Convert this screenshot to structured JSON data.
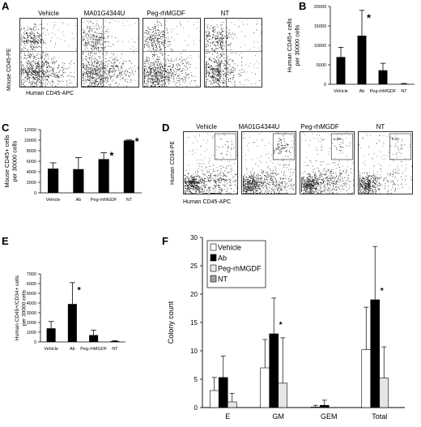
{
  "panels": {
    "A": {
      "label": "A",
      "conditions": [
        "Vehicle",
        "MA01G4344U",
        "Peg-rhMGDF",
        "NT"
      ],
      "ylabel": "Mouse CD45-PE",
      "xlabel": "Human CD45-APC"
    },
    "D": {
      "label": "D",
      "conditions": [
        "Vehicle",
        "MA01G4344U",
        "Peg-rhMGDF",
        "NT"
      ],
      "ylabel": "Human CD34-PE",
      "xlabel": "Human CD45-APC",
      "gate_values": [
        "",
        "",
        "1.68",
        "0.03"
      ]
    }
  },
  "chart_data": [
    {
      "panel": "B",
      "type": "bar",
      "categories": [
        "Vehicle",
        "Ab",
        "Peg-rhMGDF",
        "NT"
      ],
      "values": [
        7000,
        12500,
        3600,
        100
      ],
      "errors": [
        2500,
        6500,
        1800,
        100
      ],
      "significant": [
        false,
        true,
        false,
        false
      ],
      "ylabel": "Human CD45+ cells per 30000 cells",
      "ylim": [
        0,
        20000
      ],
      "yticks": [
        0,
        5000,
        10000,
        15000,
        20000
      ],
      "colors": [
        "#000000"
      ]
    },
    {
      "panel": "C",
      "type": "bar",
      "categories": [
        "Vehicle",
        "Ab",
        "Peg-rhMGDF",
        "NT"
      ],
      "values": [
        4600,
        4500,
        6400,
        9950
      ],
      "errors": [
        1100,
        2200,
        1200,
        100
      ],
      "significant": [
        false,
        false,
        true,
        true
      ],
      "ylabel": "Mouse CD45+ cells per 30000 cells",
      "ylim": [
        0,
        12000
      ],
      "yticks": [
        0,
        2000,
        4000,
        6000,
        8000,
        10000,
        12000
      ],
      "colors": [
        "#000000"
      ]
    },
    {
      "panel": "E",
      "type": "bar",
      "categories": [
        "Vehicle",
        "Ab",
        "Peg-rhMGDF",
        "NT"
      ],
      "values": [
        1400,
        3900,
        700,
        80
      ],
      "errors": [
        700,
        2200,
        500,
        40
      ],
      "significant": [
        false,
        true,
        false,
        false
      ],
      "ylabel": "Human CD45+/CD34+ cells per 30000 cells",
      "ylim": [
        0,
        7000
      ],
      "yticks": [
        0,
        1000,
        2000,
        3000,
        4000,
        5000,
        6000,
        7000
      ],
      "colors": [
        "#000000"
      ]
    },
    {
      "panel": "F",
      "type": "bar",
      "categories": [
        "E",
        "GM",
        "GEM",
        "Total"
      ],
      "series": [
        {
          "name": "Vehicle",
          "values": [
            3.0,
            7.0,
            0.1,
            10.2
          ],
          "errors": [
            2.3,
            5.0,
            0.3,
            7.5
          ],
          "color": "#ffffff"
        },
        {
          "name": "Ab",
          "values": [
            5.3,
            13.0,
            0.4,
            19.0
          ],
          "errors": [
            3.8,
            6.3,
            0.9,
            9.4
          ],
          "color": "#000000"
        },
        {
          "name": "Peg-rhMGDF",
          "values": [
            1.0,
            4.3,
            0.0,
            5.2
          ],
          "errors": [
            1.5,
            8.0,
            0.0,
            5.5
          ],
          "color": "#e6e6e6"
        },
        {
          "name": "NT",
          "values": [
            0.0,
            0.0,
            0.0,
            0.0
          ],
          "errors": [
            0,
            0,
            0,
            0
          ],
          "color": "#a0a0a0"
        }
      ],
      "significant": {
        "Ab": [
          false,
          true,
          false,
          true
        ]
      },
      "ylabel": "Colony count",
      "ylim": [
        0,
        30
      ],
      "yticks": [
        0,
        5,
        10,
        15,
        20,
        25,
        30
      ],
      "legend": "top-left"
    }
  ]
}
